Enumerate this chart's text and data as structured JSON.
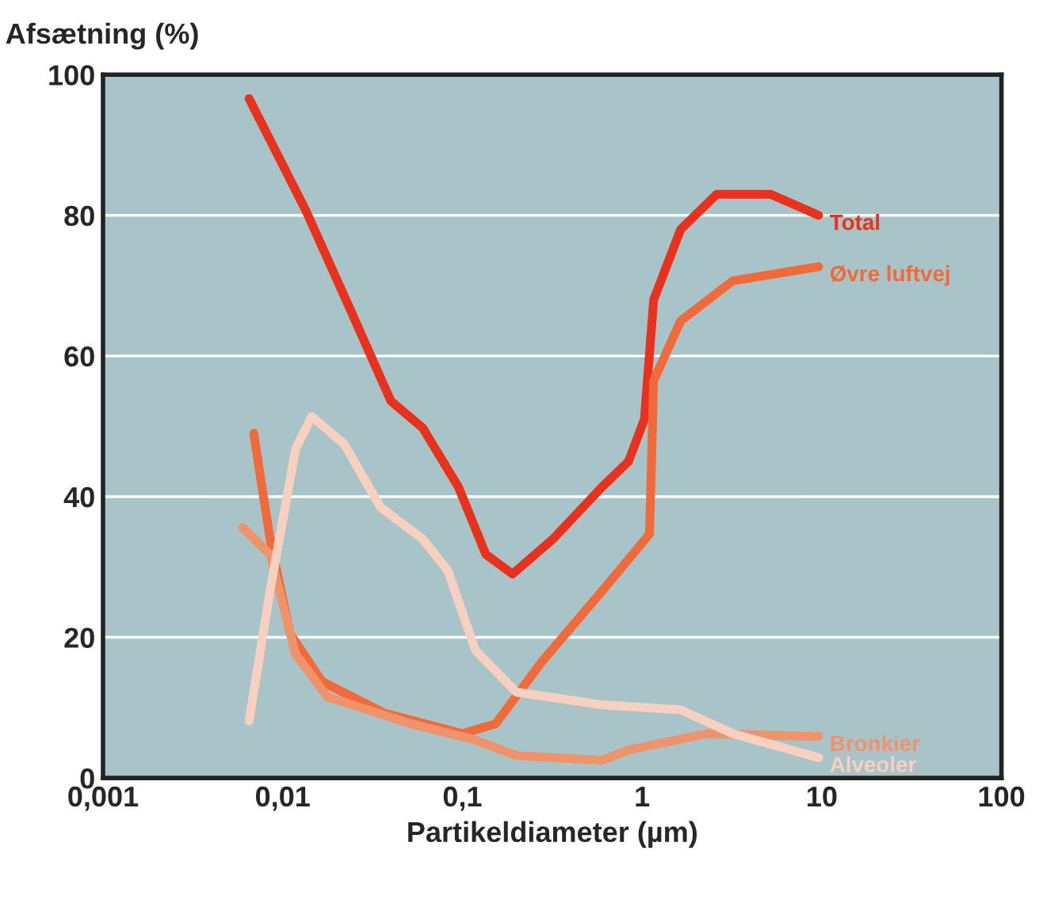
{
  "chart_data": {
    "type": "line",
    "xlabel": "Partikeldiameter (µm)",
    "ylabel": "Afsætning (%)",
    "log": "x",
    "xlim": [
      0.001,
      100
    ],
    "xticks": [
      {
        "value": 0.001,
        "label": "0,001"
      },
      {
        "value": 0.01,
        "label": "0,01"
      },
      {
        "value": 0.1,
        "label": "0,1"
      },
      1,
      10,
      100
    ],
    "ylim": [
      0,
      100
    ],
    "yticks": [
      0,
      20,
      40,
      60,
      80,
      100
    ],
    "grid": "y",
    "legend": false,
    "marker": "none",
    "line_style": "solid",
    "series": [
      {
        "name": "Total",
        "color": "#e8321e",
        "x": [
          0.0065,
          0.0135,
          0.0234,
          0.04,
          0.06,
          0.095,
          0.135,
          0.19,
          0.32,
          0.6,
          0.84,
          1.03,
          1.16,
          1.64,
          2.6,
          5.2,
          9.6
        ],
        "values": [
          96.6,
          80.6,
          67,
          53.6,
          49.8,
          41.4,
          31.8,
          29,
          34,
          41.4,
          45,
          51,
          68,
          78,
          83,
          83,
          80
        ]
      },
      {
        "name": "Øvre luftvej",
        "color": "#f06a3a",
        "x": [
          0.0069,
          0.0085,
          0.011,
          0.0166,
          0.037,
          0.1,
          0.153,
          0.28,
          0.6,
          1.1,
          1.16,
          1.64,
          3.2,
          9.6
        ],
        "values": [
          49,
          34,
          20.5,
          13.7,
          9.2,
          6.3,
          7.7,
          16.7,
          26.6,
          34.7,
          56.5,
          65,
          70.7,
          72.7
        ]
      },
      {
        "name": "Bronkier",
        "color": "#f0926a",
        "x": [
          0.006,
          0.0085,
          0.0118,
          0.0178,
          0.052,
          0.118,
          0.2,
          0.6,
          0.84,
          2.3,
          9.6
        ],
        "values": [
          35.6,
          31.8,
          17.6,
          11.5,
          7.7,
          5.4,
          3.2,
          2.5,
          4,
          6.3,
          5.9
        ]
      },
      {
        "name": "Alveoler",
        "color": "#f8d0c0",
        "x": [
          0.0065,
          0.0085,
          0.0118,
          0.0145,
          0.022,
          0.035,
          0.06,
          0.083,
          0.118,
          0.2,
          0.6,
          1.64,
          3.2,
          9.6
        ],
        "values": [
          8.1,
          26.6,
          46.8,
          51.4,
          47.5,
          38.5,
          34,
          29.5,
          18.2,
          12.2,
          10.4,
          9.7,
          6.3,
          2.9
        ]
      }
    ]
  }
}
